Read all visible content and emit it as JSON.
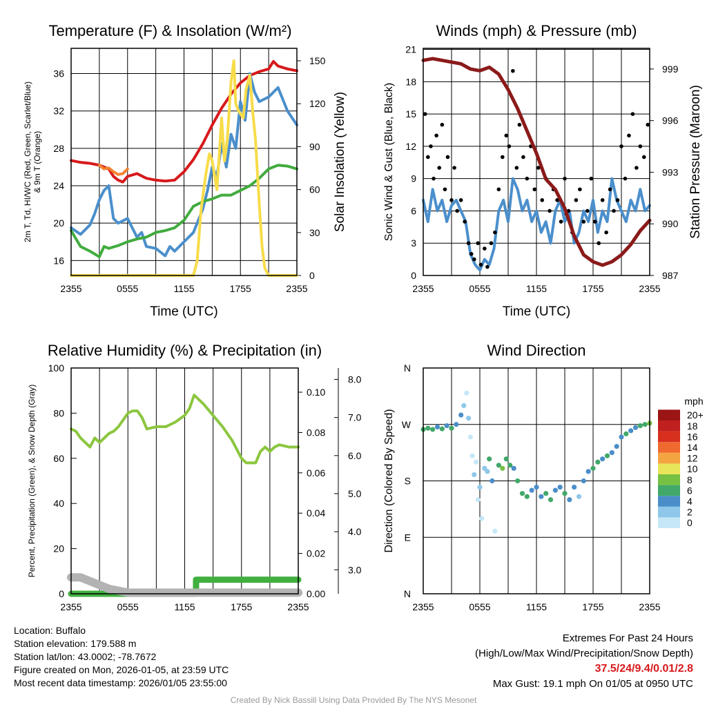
{
  "footer": {
    "location": "Location: Buffalo",
    "elevation": "Station elevation: 179.588 m",
    "latlon": "Station lat/lon: 43.0002; -78.7672",
    "created": "Figure created on Mon, 2026-01-05, at 23:59 UTC",
    "recent": "Most recent data timestamp: 2026/01/05 23:55:00",
    "extremes_title": "Extremes For Past 24 Hours",
    "extremes_sub": "(High/Low/Max Wind/Precipitation/Snow Depth)",
    "extremes_values": "37.5/24/9.4/0.01/2.8",
    "max_gust": "Max Gust: 19.1 mph On 01/05 at 0950 UTC",
    "credit": "Created By Nick Bassill Using Data Provided By The NYS Mesonet"
  },
  "chart_data": [
    {
      "type": "line",
      "title": "Temperature (F) & Insolation (W/m²)",
      "xlabel": "Time (UTC)",
      "ylabel": "2m T, Td, HI/WC (Red, Green, Scarlet/Blue) & 9m T (Orange)",
      "ylabel2": "Solar Insolation (Yellow)",
      "xticks": [
        "2355",
        "0555",
        "1155",
        "1755",
        "2355"
      ],
      "yticks": [
        "16",
        "20",
        "24",
        "28",
        "32",
        "36"
      ],
      "y2ticks": [
        "0",
        "30",
        "60",
        "90",
        "120",
        "150"
      ],
      "ylim": [
        14.4,
        38.7
      ],
      "y2lim": [
        0,
        158.7
      ],
      "xlim": [
        0,
        24
      ],
      "series": [
        {
          "name": "2m T",
          "color": "#d7191c",
          "axis": "left",
          "x": [
            0,
            1,
            2,
            3,
            4,
            4.5,
            5,
            5.5,
            6,
            7,
            8,
            9,
            10,
            11,
            12,
            13,
            14,
            15,
            16,
            17,
            18,
            19,
            20,
            21,
            21.5,
            22,
            23,
            24
          ],
          "y": [
            26.7,
            26.5,
            26.4,
            26.2,
            25.8,
            25,
            24.6,
            24.4,
            25,
            25.3,
            24.8,
            24.6,
            24.5,
            24.6,
            25.5,
            26.8,
            28.5,
            30.5,
            32.3,
            33.8,
            35,
            35.8,
            36.2,
            36.5,
            37.3,
            36.8,
            36.5,
            36.3
          ]
        },
        {
          "name": "9m T",
          "color": "#f58231",
          "axis": "left",
          "x": [
            3,
            3.5,
            4,
            4.5,
            5,
            5.5,
            6
          ],
          "y": [
            26.2,
            25.8,
            25.9,
            25.5,
            25.2,
            25.3,
            25.8
          ]
        },
        {
          "name": "Td",
          "color": "#4b8fcc",
          "axis": "left",
          "x": [
            0,
            1,
            2,
            2.5,
            3,
            3.5,
            4,
            4.5,
            5,
            6,
            7,
            7.5,
            8,
            9,
            10,
            10.5,
            11,
            12,
            13,
            14,
            14.5,
            15,
            15.5,
            16,
            16.5,
            17,
            17.5,
            18,
            18.5,
            19,
            19.5,
            20,
            21,
            22,
            23,
            24
          ],
          "y": [
            19.5,
            18.8,
            19.8,
            21,
            22.5,
            23.5,
            24,
            20.5,
            20,
            20.5,
            18.5,
            19,
            17.5,
            17.3,
            16.5,
            17.5,
            17,
            18,
            19,
            21.5,
            23.5,
            26,
            25,
            28.5,
            26,
            29.5,
            28,
            33,
            31,
            36,
            34,
            33,
            33.5,
            34.5,
            32,
            30.5
          ]
        },
        {
          "name": "HI/WC",
          "color": "#41ab3d",
          "axis": "left",
          "x": [
            0,
            1,
            2,
            3,
            3.5,
            4,
            5,
            6,
            7,
            8,
            9,
            10,
            11,
            12,
            13,
            14,
            15,
            16,
            17,
            18,
            19,
            20,
            21,
            22,
            23,
            24
          ],
          "y": [
            19.2,
            17.5,
            17,
            16.4,
            17.5,
            17.3,
            17.6,
            18,
            18.3,
            18.5,
            19,
            19.2,
            19.5,
            20.3,
            21.8,
            22.3,
            22.6,
            23,
            23,
            23.5,
            24,
            24.8,
            25.8,
            26.2,
            26.1,
            25.8
          ]
        },
        {
          "name": "Solar",
          "color": "#f7dc4a",
          "axis": "right",
          "x": [
            0,
            13,
            13.4,
            13.8,
            14.3,
            14.7,
            15,
            15.5,
            16,
            16.3,
            16.6,
            17,
            17.3,
            17.5,
            17.8,
            18.3,
            18.6,
            19,
            19.3,
            19.6,
            20,
            20.3,
            20.6,
            21,
            24
          ],
          "y": [
            0,
            0,
            10,
            45,
            70,
            85,
            80,
            60,
            110,
            80,
            95,
            135,
            150,
            120,
            115,
            110,
            130,
            140,
            115,
            95,
            50,
            20,
            5,
            0,
            0
          ]
        }
      ]
    },
    {
      "type": "line",
      "title": "Winds (mph) & Pressure (mb)",
      "xlabel": "Time (UTC)",
      "ylabel": "Sonic Wind & Gust (Blue, Black)",
      "ylabel2": "Station Pressure (Maroon)",
      "xticks": [
        "2355",
        "0555",
        "1155",
        "1755",
        "2355"
      ],
      "yticks": [
        "0",
        "3",
        "6",
        "9",
        "12",
        "15",
        "18",
        "21"
      ],
      "y2ticks": [
        "987",
        "990",
        "993",
        "996",
        "999"
      ],
      "ylim": [
        0,
        21.1
      ],
      "y2lim": [
        987,
        1000.2
      ],
      "xlim": [
        0,
        24
      ],
      "series": [
        {
          "name": "Sonic Wind",
          "color": "#4b8fcc",
          "axis": "left",
          "x": [
            0,
            0.5,
            1,
            1.5,
            2,
            2.5,
            3,
            3.5,
            4,
            4.5,
            5,
            5.5,
            6,
            6.5,
            7,
            7.5,
            8,
            8.5,
            9,
            9.5,
            10,
            10.5,
            11,
            11.5,
            12,
            12.5,
            13,
            13.5,
            14,
            14.5,
            15,
            15.5,
            16,
            16.5,
            17,
            17.5,
            18,
            18.5,
            19,
            19.5,
            20,
            20.5,
            21,
            21.5,
            22,
            22.5,
            23,
            23.5,
            24
          ],
          "y": [
            7,
            5,
            8,
            6,
            7,
            5,
            6.5,
            7,
            6,
            5,
            2,
            1,
            0.5,
            1.5,
            1,
            2.5,
            6,
            7,
            5,
            9,
            8,
            6,
            7,
            5,
            6,
            4,
            5,
            3,
            6,
            7,
            5,
            6,
            3,
            4,
            6,
            5,
            7,
            4,
            6,
            5,
            9,
            7,
            6,
            5,
            7,
            6,
            8,
            6,
            6.5
          ]
        },
        {
          "name": "Gust",
          "color": "#000000",
          "axis": "left",
          "type": "scatter",
          "x": [
            0.2,
            0.5,
            0.8,
            1.1,
            1.4,
            1.7,
            2,
            2.3,
            2.6,
            3,
            3.3,
            3.6,
            4,
            4.4,
            4.8,
            5.1,
            5.4,
            5.8,
            6.1,
            6.5,
            6.8,
            7.2,
            7.6,
            8,
            8.4,
            8.8,
            9.1,
            9.5,
            9.9,
            10.2,
            10.6,
            11,
            11.4,
            11.8,
            12.2,
            12.6,
            13,
            13.4,
            13.8,
            14.2,
            14.6,
            15,
            15.4,
            15.8,
            16.2,
            16.6,
            17,
            17.4,
            17.8,
            18.2,
            18.6,
            19,
            19.4,
            19.8,
            20.2,
            20.6,
            21,
            21.4,
            21.8,
            22.2,
            22.6,
            23,
            23.4,
            23.8
          ],
          "y": [
            15,
            11,
            12,
            9,
            13,
            10,
            14,
            8,
            11,
            7,
            10,
            6,
            7,
            5,
            3,
            2,
            1.5,
            3,
            1,
            2.5,
            0.8,
            3,
            4,
            8,
            11,
            13,
            12,
            19,
            10,
            14,
            11,
            9,
            12,
            8,
            10,
            7,
            9,
            6,
            8,
            7,
            5,
            9,
            6,
            4,
            7,
            8,
            5,
            6,
            9,
            5,
            3,
            7,
            4,
            8,
            6,
            7,
            12,
            9,
            13,
            15,
            10,
            12,
            11,
            14
          ]
        },
        {
          "name": "Pressure",
          "color": "#8b1a1a",
          "axis": "right",
          "x": [
            0,
            1,
            2,
            3,
            4,
            5,
            6,
            7,
            8,
            9,
            10,
            11,
            12,
            13,
            14,
            15,
            16,
            17,
            18,
            19,
            20,
            21,
            22,
            23,
            24
          ],
          "y": [
            999.5,
            999.6,
            999.5,
            999.4,
            999.3,
            999,
            998.9,
            999.1,
            998.7,
            997.8,
            996.7,
            995.4,
            994.1,
            992.6,
            992,
            990.9,
            989.3,
            988.2,
            987.8,
            987.6,
            987.8,
            988.2,
            988.8,
            989.6,
            990.2
          ]
        }
      ]
    },
    {
      "type": "line",
      "title": "Relative Humidity (%) & Precipitation (in)",
      "xlabel": "",
      "ylabel": "Percent, Precipitation (Green), & Snow Depth (Gray)",
      "xticks": [
        "2355",
        "0555",
        "1155",
        "1755",
        "2355"
      ],
      "yticks": [
        "0",
        "20",
        "40",
        "60",
        "80",
        "100"
      ],
      "y2ticks": [
        "0.00",
        "0.02",
        "0.04",
        "0.06",
        "0.08",
        "0.10"
      ],
      "y3ticks": [
        "3.0",
        "4.0",
        "5.0",
        "6.0",
        "7.0",
        "8.0"
      ],
      "ylim": [
        0,
        100
      ],
      "y2lim": [
        0,
        0.112
      ],
      "y3lim": [
        2.37,
        8.3
      ],
      "xlim": [
        0,
        24
      ],
      "series": [
        {
          "name": "RH",
          "color": "#8cc63f",
          "axis": "left",
          "x": [
            0,
            0.5,
            1,
            1.5,
            2,
            2.5,
            3,
            3.5,
            4,
            4.5,
            5,
            5.5,
            6,
            6.5,
            7,
            7.5,
            8,
            9,
            10,
            11,
            12,
            12.5,
            13,
            13.5,
            14,
            15,
            16,
            17,
            17.5,
            18,
            18.5,
            19,
            19.5,
            20,
            20.5,
            21,
            21.5,
            22,
            23,
            24
          ],
          "y": [
            73,
            72,
            69,
            67,
            65,
            69,
            67,
            69,
            71,
            72,
            74,
            77,
            80,
            81,
            81,
            78,
            73,
            74,
            74,
            76,
            79,
            82,
            88,
            86,
            84,
            79,
            74,
            68,
            64,
            60,
            58,
            58,
            58,
            63,
            65,
            63,
            65,
            66,
            65,
            65
          ]
        },
        {
          "name": "Precipitation",
          "color": "#41b040",
          "axis": "right",
          "x": [
            0,
            13.2,
            13.2,
            24
          ],
          "y": [
            0,
            0,
            0.007,
            0.007
          ]
        },
        {
          "name": "Snow Depth",
          "color": "#b3b3b3",
          "axis": "right2",
          "x": [
            0,
            1,
            2,
            3,
            4,
            5,
            6,
            24
          ],
          "y": [
            2.8,
            2.8,
            2.7,
            2.6,
            2.5,
            2.45,
            2.4,
            2.4
          ]
        }
      ]
    },
    {
      "type": "scatter",
      "title": "Wind Direction",
      "ylabel": "Direction (Colored By Speed)",
      "xticks": [
        "2355",
        "0555",
        "1155",
        "1755",
        "2355"
      ],
      "yticks": [
        "N",
        "E",
        "S",
        "W",
        "N"
      ],
      "ylim": [
        0,
        360
      ],
      "xlim": [
        0,
        24
      ],
      "colorbar": {
        "label": "mph",
        "ticks": [
          "0",
          "2",
          "4",
          "6",
          "8",
          "10",
          "12",
          "14",
          "16",
          "18",
          "20+"
        ],
        "colors": [
          "#c6e7f7",
          "#8ec7ea",
          "#4a8ec9",
          "#41a86a",
          "#76c043",
          "#e8e55a",
          "#f5a442",
          "#ef6a2f",
          "#d7301f",
          "#c0201e",
          "#9b1515"
        ]
      },
      "points": {
        "x": [
          0,
          0.5,
          1,
          1.5,
          2,
          2.5,
          3,
          3.5,
          4,
          4.3,
          4.6,
          4.8,
          5,
          5.2,
          5.4,
          5.6,
          5.8,
          6,
          6.2,
          6.5,
          6.8,
          7,
          7.3,
          7.6,
          8,
          8.4,
          8.8,
          9.2,
          9.6,
          10,
          10.5,
          11,
          11.5,
          12,
          12.5,
          13,
          13.5,
          14,
          14.5,
          15,
          15.5,
          16,
          16.5,
          17,
          17.5,
          18,
          18.5,
          19,
          19.5,
          20,
          20.5,
          21,
          21.5,
          22,
          22.5,
          23,
          23.5,
          24
        ],
        "y": [
          262,
          264,
          262,
          266,
          263,
          268,
          264,
          270,
          285,
          300,
          320,
          280,
          250,
          220,
          190,
          210,
          150,
          170,
          120,
          200,
          195,
          215,
          180,
          100,
          205,
          200,
          215,
          205,
          200,
          180,
          160,
          155,
          165,
          170,
          155,
          160,
          150,
          165,
          170,
          160,
          150,
          170,
          155,
          180,
          195,
          200,
          210,
          215,
          220,
          225,
          235,
          250,
          255,
          260,
          265,
          268,
          270,
          272
        ],
        "speed": [
          6,
          7,
          6,
          5,
          6,
          4,
          6,
          5,
          4,
          2,
          1,
          2,
          1,
          1,
          2,
          1,
          1,
          2,
          1,
          2,
          3,
          6,
          5,
          1,
          7,
          8,
          6,
          7,
          5,
          6,
          7,
          6,
          5,
          4,
          5,
          6,
          7,
          4,
          5,
          6,
          4,
          5,
          3,
          4,
          5,
          7,
          6,
          5,
          6,
          5,
          4,
          5,
          6,
          5,
          5,
          7,
          6,
          8
        ]
      }
    }
  ]
}
